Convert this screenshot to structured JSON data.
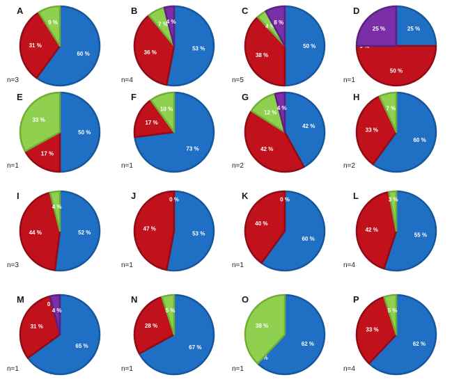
{
  "colors": {
    "blue": "#1f6fc4",
    "red": "#c0111d",
    "green": "#8fd14f",
    "purple": "#7a2fa8"
  },
  "chart_data": [
    {
      "type": "pie",
      "panel": "A",
      "n": "n=3",
      "slices": [
        {
          "color": "blue",
          "value": 60,
          "label": "60 %"
        },
        {
          "color": "red",
          "value": 31,
          "label": "31 %"
        },
        {
          "color": "green",
          "value": 9,
          "label": "9 %"
        }
      ]
    },
    {
      "type": "pie",
      "panel": "B",
      "n": "n=4",
      "slices": [
        {
          "color": "blue",
          "value": 53,
          "label": "53 %"
        },
        {
          "color": "red",
          "value": 36,
          "label": "36 %"
        },
        {
          "color": "green",
          "value": 7,
          "label": "7 %"
        },
        {
          "color": "purple",
          "value": 4,
          "label": "4 %"
        }
      ]
    },
    {
      "type": "pie",
      "panel": "C",
      "n": "n=5",
      "slices": [
        {
          "color": "blue",
          "value": 50,
          "label": "50 %"
        },
        {
          "color": "red",
          "value": 38,
          "label": "38 %"
        },
        {
          "color": "green",
          "value": 4,
          "label": "4 %"
        },
        {
          "color": "purple",
          "value": 8,
          "label": "8 %"
        }
      ]
    },
    {
      "type": "pie",
      "panel": "D",
      "n": "n=1",
      "slices": [
        {
          "color": "blue",
          "value": 25,
          "label": "25 %"
        },
        {
          "color": "red",
          "value": 50,
          "label": "50 %"
        },
        {
          "color": "green",
          "value": 0,
          "label": "0 %"
        },
        {
          "color": "purple",
          "value": 25,
          "label": "25 %"
        }
      ]
    },
    {
      "type": "pie",
      "panel": "E",
      "n": "n=1",
      "slices": [
        {
          "color": "blue",
          "value": 50,
          "label": "50 %"
        },
        {
          "color": "red",
          "value": 17,
          "label": "17 %"
        },
        {
          "color": "green",
          "value": 33,
          "label": "33 %"
        }
      ]
    },
    {
      "type": "pie",
      "panel": "F",
      "n": "n=1",
      "slices": [
        {
          "color": "blue",
          "value": 73,
          "label": "73 %"
        },
        {
          "color": "red",
          "value": 17,
          "label": "17 %"
        },
        {
          "color": "green",
          "value": 10,
          "label": "10 %"
        }
      ]
    },
    {
      "type": "pie",
      "panel": "G",
      "n": "n=2",
      "slices": [
        {
          "color": "blue",
          "value": 42,
          "label": "42 %"
        },
        {
          "color": "red",
          "value": 42,
          "label": "42 %"
        },
        {
          "color": "green",
          "value": 12,
          "label": "12 %"
        },
        {
          "color": "purple",
          "value": 4,
          "label": "4 %"
        }
      ]
    },
    {
      "type": "pie",
      "panel": "H",
      "n": "n=2",
      "slices": [
        {
          "color": "blue",
          "value": 60,
          "label": "60 %"
        },
        {
          "color": "red",
          "value": 33,
          "label": "33 %"
        },
        {
          "color": "green",
          "value": 7,
          "label": "7 %"
        }
      ]
    },
    {
      "type": "pie",
      "panel": "I",
      "n": "n=3",
      "slices": [
        {
          "color": "blue",
          "value": 52,
          "label": "52 %"
        },
        {
          "color": "red",
          "value": 44,
          "label": "44 %"
        },
        {
          "color": "green",
          "value": 4,
          "label": "4 %"
        }
      ]
    },
    {
      "type": "pie",
      "panel": "J",
      "n": "n=1",
      "slices": [
        {
          "color": "blue",
          "value": 53,
          "label": "53 %"
        },
        {
          "color": "red",
          "value": 47,
          "label": "47 %"
        },
        {
          "color": "green",
          "value": 0,
          "label": "0 %"
        }
      ]
    },
    {
      "type": "pie",
      "panel": "K",
      "n": "n=1",
      "slices": [
        {
          "color": "blue",
          "value": 60,
          "label": "60 %"
        },
        {
          "color": "red",
          "value": 40,
          "label": "40 %"
        },
        {
          "color": "green",
          "value": 0,
          "label": "0 %"
        }
      ]
    },
    {
      "type": "pie",
      "panel": "L",
      "n": "n=4",
      "slices": [
        {
          "color": "blue",
          "value": 55,
          "label": "55 %"
        },
        {
          "color": "red",
          "value": 42,
          "label": "42 %"
        },
        {
          "color": "green",
          "value": 3,
          "label": "3 %"
        }
      ]
    },
    {
      "type": "pie",
      "panel": "M",
      "n": "n=1",
      "slices": [
        {
          "color": "blue",
          "value": 65,
          "label": "65 %"
        },
        {
          "color": "red",
          "value": 31,
          "label": "31 %"
        },
        {
          "color": "green",
          "value": 0,
          "label": "0 %"
        },
        {
          "color": "purple",
          "value": 4,
          "label": "4 %"
        }
      ]
    },
    {
      "type": "pie",
      "panel": "N",
      "n": "n=1",
      "slices": [
        {
          "color": "blue",
          "value": 67,
          "label": "67 %"
        },
        {
          "color": "red",
          "value": 28,
          "label": "28 %"
        },
        {
          "color": "green",
          "value": 5,
          "label": "5 %"
        }
      ]
    },
    {
      "type": "pie",
      "panel": "O",
      "n": "n=1",
      "slices": [
        {
          "color": "blue",
          "value": 62,
          "label": "62 %"
        },
        {
          "color": "red",
          "value": 0,
          "label": "0 %"
        },
        {
          "color": "green",
          "value": 38,
          "label": "38 %"
        }
      ]
    },
    {
      "type": "pie",
      "panel": "P",
      "n": "n=4",
      "slices": [
        {
          "color": "blue",
          "value": 62,
          "label": "62 %"
        },
        {
          "color": "red",
          "value": 33,
          "label": "33 %"
        },
        {
          "color": "green",
          "value": 5,
          "label": "5 %"
        }
      ]
    }
  ]
}
